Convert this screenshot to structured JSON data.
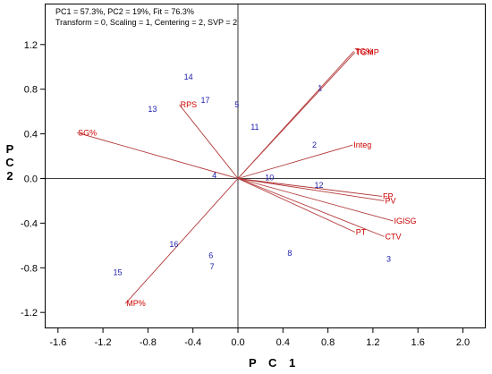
{
  "info": {
    "line1": "PC1 = 57.3%, PC2 = 19%, Fit = 76.3%",
    "line2": "Transform = 0, Scaling = 1, Centering = 2, SVP = 2"
  },
  "chart_data": {
    "type": "scatter",
    "title": "",
    "xlabel": "P C 1",
    "ylabel": "P C 2",
    "xlim": [
      -1.6,
      2.0
    ],
    "ylim": [
      -1.2,
      1.2
    ],
    "xticks": [
      "-1.6",
      "-1.2",
      "-0.8",
      "-0.4",
      "0.0",
      "0.4",
      "0.8",
      "1.2",
      "1.6",
      "2.0"
    ],
    "yticks": [
      "1.2",
      "0.8",
      "0.4",
      "0.0",
      "-0.4",
      "-0.8",
      "-1.2"
    ],
    "grid": false,
    "line_color": "#b33a3a",
    "variable_color": "#cc0000",
    "observation_color": "#1a1aaa",
    "variables": [
      {
        "name": "TG%",
        "x": 1.03,
        "y": 1.14
      },
      {
        "name": "TGMP",
        "x": 1.04,
        "y": 1.13
      },
      {
        "name": "Integ",
        "x": 1.02,
        "y": 0.3
      },
      {
        "name": "FP",
        "x": 1.28,
        "y": -0.16
      },
      {
        "name": "PV",
        "x": 1.3,
        "y": -0.2
      },
      {
        "name": "IGISG",
        "x": 1.38,
        "y": -0.38
      },
      {
        "name": "CTV",
        "x": 1.3,
        "y": -0.52
      },
      {
        "name": "PT",
        "x": 1.04,
        "y": -0.48
      },
      {
        "name": "RPS",
        "x": -0.52,
        "y": 0.66
      },
      {
        "name": "SG%",
        "x": -1.43,
        "y": 0.41
      },
      {
        "name": "MP%",
        "x": -1.0,
        "y": -1.12
      }
    ],
    "observations": [
      {
        "label": "1",
        "x": 0.73,
        "y": 0.81
      },
      {
        "label": "2",
        "x": 0.68,
        "y": 0.3
      },
      {
        "label": "3",
        "x": 1.34,
        "y": -0.72
      },
      {
        "label": "4",
        "x": -0.21,
        "y": 0.03
      },
      {
        "label": "5",
        "x": -0.01,
        "y": 0.66
      },
      {
        "label": "6",
        "x": -0.24,
        "y": -0.69
      },
      {
        "label": "7",
        "x": -0.23,
        "y": -0.79
      },
      {
        "label": "8",
        "x": 0.46,
        "y": -0.67
      },
      {
        "label": "10",
        "x": 0.28,
        "y": 0.01
      },
      {
        "label": "11",
        "x": 0.15,
        "y": 0.46
      },
      {
        "label": "12",
        "x": 0.72,
        "y": -0.06
      },
      {
        "label": "13",
        "x": -0.76,
        "y": 0.62
      },
      {
        "label": "14",
        "x": -0.44,
        "y": 0.91
      },
      {
        "label": "15",
        "x": -1.07,
        "y": -0.84
      },
      {
        "label": "16",
        "x": -0.57,
        "y": -0.59
      },
      {
        "label": "17",
        "x": -0.29,
        "y": 0.7
      }
    ]
  }
}
